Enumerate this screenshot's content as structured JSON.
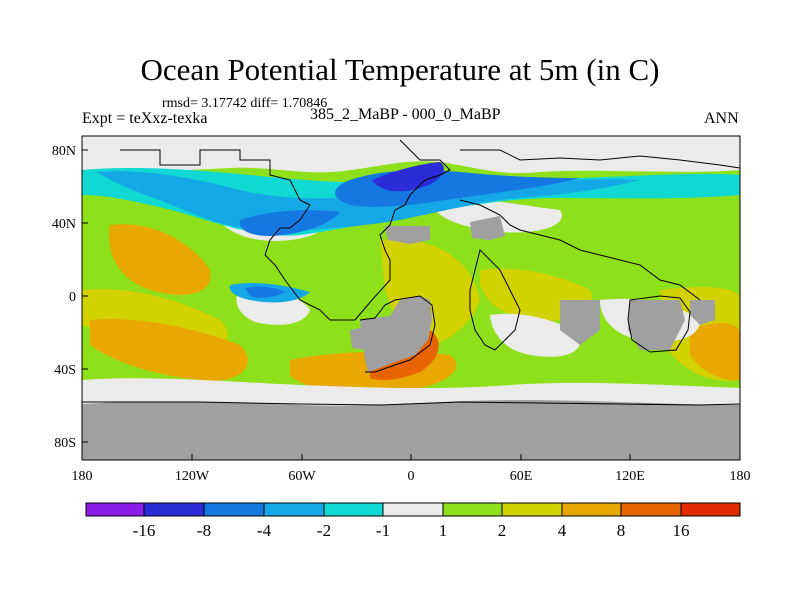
{
  "title": "Ocean Potential Temperature at 5m (in C)",
  "stats_line": "rmsd= 3.17742 diff= 1.70846",
  "left_label": "Expt = teXxz-texka",
  "center_label": "385_2_MaBP - 000_0_MaBP",
  "right_label": "ANN",
  "axes": {
    "x_ticks": [
      "180",
      "120W",
      "60W",
      "0",
      "60E",
      "120E",
      "180"
    ],
    "y_ticks": [
      "80N",
      "40N",
      "0",
      "40S",
      "80S"
    ]
  },
  "colorbar": {
    "labels": [
      "-16",
      "-8",
      "-4",
      "-2",
      "-1",
      "1",
      "2",
      "4",
      "8",
      "16"
    ],
    "colors": [
      "#8a1ee8",
      "#2b2bd8",
      "#1478e0",
      "#14a8e6",
      "#10d8d2",
      "#ebebeb",
      "#8ee01a",
      "#d2d200",
      "#e8a800",
      "#e86400",
      "#e02a00"
    ]
  },
  "colors": {
    "land": "#a0a0a0",
    "neutral": "#ebebeb",
    "green": "#8ee01a",
    "yellow": "#d2d200",
    "orange": "#e8a800",
    "deep_orange": "#e86400",
    "cyan": "#10d8d2",
    "light_blue": "#14a8e6",
    "blue": "#1478e0",
    "dark_blue": "#2b2bd8"
  }
}
